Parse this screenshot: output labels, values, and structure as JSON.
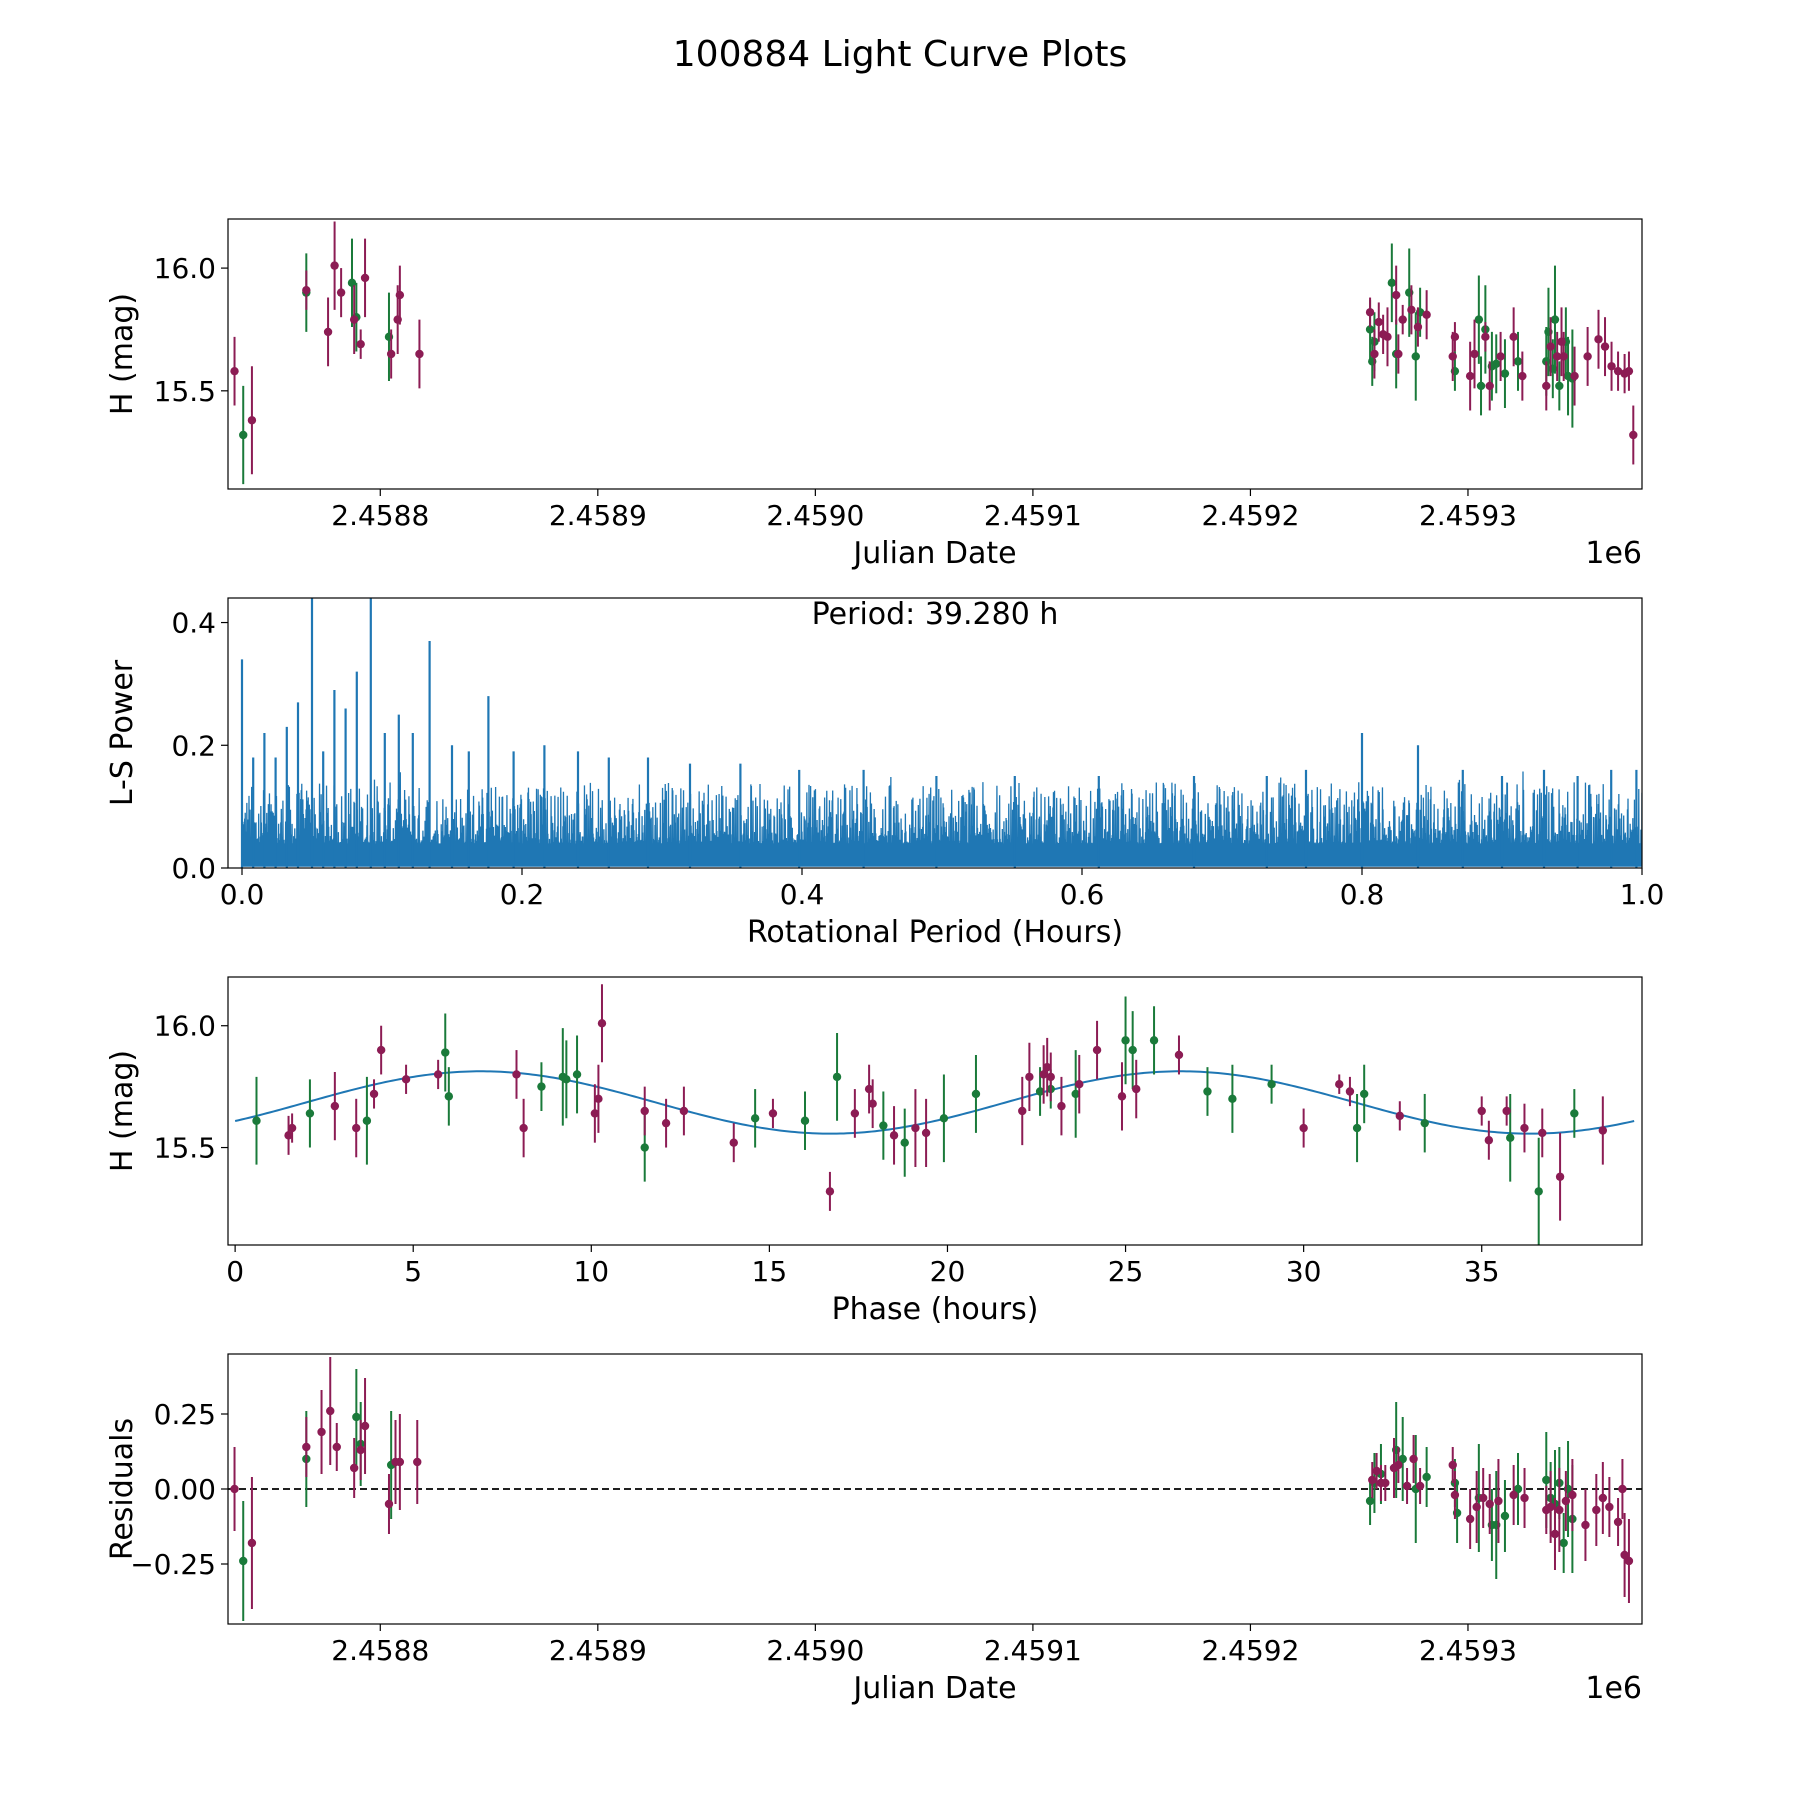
{
  "figure_title": "100884 Light Curve Plots",
  "colors": {
    "g": "#1a7a3a",
    "o": "#8c1c54",
    "model": "#1f77b4",
    "periodogram": "#1f77b4"
  },
  "chart_data": [
    {
      "id": "lc",
      "type": "scatter",
      "xlabel": "Julian Date",
      "ylabel": "H (mag)",
      "x_offset_label": "1e6",
      "xlim": [
        2.45873,
        2.45938
      ],
      "ylim": [
        15.1,
        16.2
      ],
      "xticks": [
        2.4588,
        2.4589,
        2.459,
        2.4591,
        2.4592,
        2.4593
      ],
      "xticklabels": [
        "2.4588",
        "2.4589",
        "2.4590",
        "2.4591",
        "2.4592",
        "2.4593"
      ],
      "yticks": [
        15.5,
        16.0
      ],
      "yticklabels": [
        "15.5",
        "16.0"
      ],
      "series": [
        {
          "name": "g",
          "x": [
            2.458737,
            2.458766,
            2.458787,
            2.458789,
            2.458804,
            2.459255,
            2.459256,
            2.459257,
            2.459265,
            2.459267,
            2.459273,
            2.459276,
            2.459278,
            2.459294,
            2.459305,
            2.459306,
            2.459308,
            2.459311,
            2.459313,
            2.459317,
            2.459323,
            2.459336,
            2.459337,
            2.459339,
            2.45934,
            2.459342,
            2.459345,
            2.459346,
            2.459348
          ],
          "y": [
            15.32,
            15.9,
            15.94,
            15.8,
            15.72,
            15.75,
            15.62,
            15.7,
            15.94,
            15.65,
            15.9,
            15.64,
            15.82,
            15.58,
            15.79,
            15.52,
            15.75,
            15.6,
            15.61,
            15.57,
            15.62,
            15.62,
            15.74,
            15.59,
            15.79,
            15.52,
            15.7,
            15.56,
            15.55
          ],
          "err": [
            0.2,
            0.16,
            0.18,
            0.14,
            0.18,
            0.12,
            0.1,
            0.12,
            0.16,
            0.14,
            0.18,
            0.18,
            0.1,
            0.08,
            0.18,
            0.12,
            0.18,
            0.14,
            0.12,
            0.14,
            0.12,
            0.14,
            0.18,
            0.12,
            0.22,
            0.1,
            0.14,
            0.16,
            0.2
          ]
        },
        {
          "name": "o",
          "x": [
            2.458733,
            2.458741,
            2.458766,
            2.458776,
            2.458779,
            2.458782,
            2.458788,
            2.458791,
            2.458793,
            2.458805,
            2.458808,
            2.458809,
            2.458818,
            2.459255,
            2.459257,
            2.459259,
            2.459261,
            2.459263,
            2.459267,
            2.459268,
            2.45927,
            2.459274,
            2.459277,
            2.459281,
            2.459293,
            2.459294,
            2.459301,
            2.459303,
            2.459308,
            2.45931,
            2.459315,
            2.459321,
            2.459325,
            2.459336,
            2.459338,
            2.459341,
            2.459343,
            2.459344,
            2.459349,
            2.459355,
            2.45936,
            2.459363,
            2.459366,
            2.459369,
            2.459372,
            2.459374,
            2.459376
          ],
          "y": [
            15.58,
            15.38,
            15.91,
            15.74,
            16.01,
            15.9,
            15.79,
            15.69,
            15.96,
            15.65,
            15.79,
            15.89,
            15.65,
            15.82,
            15.65,
            15.78,
            15.73,
            15.72,
            15.89,
            15.65,
            15.79,
            15.83,
            15.76,
            15.81,
            15.64,
            15.72,
            15.56,
            15.65,
            15.72,
            15.52,
            15.64,
            15.72,
            15.56,
            15.52,
            15.68,
            15.64,
            15.7,
            15.64,
            15.56,
            15.64,
            15.71,
            15.68,
            15.6,
            15.58,
            15.57,
            15.58,
            15.32
          ],
          "err": [
            0.14,
            0.22,
            0.08,
            0.14,
            0.18,
            0.1,
            0.14,
            0.06,
            0.16,
            0.1,
            0.14,
            0.12,
            0.14,
            0.06,
            0.1,
            0.08,
            0.08,
            0.12,
            0.12,
            0.08,
            0.06,
            0.1,
            0.08,
            0.1,
            0.1,
            0.06,
            0.14,
            0.14,
            0.06,
            0.1,
            0.1,
            0.12,
            0.1,
            0.1,
            0.12,
            0.1,
            0.14,
            0.1,
            0.12,
            0.12,
            0.12,
            0.12,
            0.1,
            0.08,
            0.08,
            0.08,
            0.12
          ]
        }
      ]
    },
    {
      "id": "ls",
      "type": "line",
      "xlabel": "Rotational Period (Hours)",
      "ylabel": "L-S Power",
      "annotation": "Period: 39.280 h",
      "xlim": [
        -0.01,
        1.0
      ],
      "ylim": [
        0.0,
        0.44
      ],
      "xticks": [
        0.0,
        0.2,
        0.4,
        0.6,
        0.8,
        1.0
      ],
      "xticklabels": [
        "0.0",
        "0.2",
        "0.4",
        "0.6",
        "0.8",
        "1.0"
      ],
      "yticks": [
        0.0,
        0.2,
        0.4
      ],
      "yticklabels": [
        "0.0",
        "0.2",
        "0.4"
      ],
      "peaks": [
        [
          0.0,
          0.34
        ],
        [
          0.008,
          0.18
        ],
        [
          0.016,
          0.22
        ],
        [
          0.024,
          0.18
        ],
        [
          0.032,
          0.23
        ],
        [
          0.04,
          0.27
        ],
        [
          0.05,
          0.44
        ],
        [
          0.058,
          0.19
        ],
        [
          0.066,
          0.29
        ],
        [
          0.074,
          0.26
        ],
        [
          0.082,
          0.32
        ],
        [
          0.092,
          0.44
        ],
        [
          0.102,
          0.22
        ],
        [
          0.112,
          0.25
        ],
        [
          0.122,
          0.22
        ],
        [
          0.134,
          0.37
        ],
        [
          0.15,
          0.2
        ],
        [
          0.162,
          0.19
        ],
        [
          0.176,
          0.28
        ],
        [
          0.194,
          0.19
        ],
        [
          0.216,
          0.2
        ],
        [
          0.24,
          0.19
        ],
        [
          0.262,
          0.18
        ],
        [
          0.29,
          0.18
        ],
        [
          0.32,
          0.17
        ],
        [
          0.356,
          0.17
        ],
        [
          0.398,
          0.16
        ],
        [
          0.444,
          0.16
        ],
        [
          0.496,
          0.15
        ],
        [
          0.552,
          0.15
        ],
        [
          0.612,
          0.15
        ],
        [
          0.68,
          0.15
        ],
        [
          0.732,
          0.15
        ],
        [
          0.76,
          0.16
        ],
        [
          0.8,
          0.22
        ],
        [
          0.84,
          0.2
        ],
        [
          0.872,
          0.16
        ],
        [
          0.9,
          0.15
        ],
        [
          0.93,
          0.16
        ],
        [
          0.954,
          0.15
        ],
        [
          0.978,
          0.16
        ],
        [
          0.996,
          0.16
        ]
      ]
    },
    {
      "id": "phase",
      "type": "scatter",
      "xlabel": "Phase (hours)",
      "ylabel": "H (mag)",
      "xlim": [
        -0.2,
        39.5
      ],
      "ylim": [
        15.1,
        16.2
      ],
      "xticks": [
        0,
        5,
        10,
        15,
        20,
        25,
        30,
        35
      ],
      "xticklabels": [
        "0",
        "5",
        "10",
        "15",
        "20",
        "25",
        "30",
        "35"
      ],
      "yticks": [
        15.5,
        16.0
      ],
      "yticklabels": [
        "15.5",
        "16.0"
      ],
      "model": {
        "period": 39.28,
        "mean": 15.685,
        "amp": 0.128,
        "peak_phase": 6.9
      },
      "series": [
        {
          "name": "g",
          "x": [
            0.6,
            2.1,
            3.7,
            5.9,
            6.0,
            8.6,
            9.2,
            9.3,
            9.6,
            11.5,
            14.6,
            16.0,
            16.9,
            18.2,
            18.8,
            19.9,
            20.8,
            22.6,
            22.9,
            23.6,
            25.0,
            25.2,
            25.8,
            27.3,
            28.0,
            29.1,
            31.5,
            31.7,
            33.4,
            35.8,
            36.6,
            37.6
          ],
          "y": [
            15.61,
            15.64,
            15.61,
            15.89,
            15.71,
            15.75,
            15.79,
            15.78,
            15.8,
            15.5,
            15.62,
            15.61,
            15.79,
            15.59,
            15.52,
            15.62,
            15.72,
            15.73,
            15.74,
            15.72,
            15.94,
            15.9,
            15.94,
            15.73,
            15.7,
            15.76,
            15.58,
            15.72,
            15.6,
            15.54,
            15.32,
            15.64
          ],
          "err": [
            0.18,
            0.14,
            0.18,
            0.16,
            0.12,
            0.1,
            0.2,
            0.16,
            0.16,
            0.14,
            0.12,
            0.12,
            0.18,
            0.14,
            0.14,
            0.18,
            0.16,
            0.1,
            0.08,
            0.18,
            0.18,
            0.16,
            0.14,
            0.1,
            0.14,
            0.08,
            0.14,
            0.12,
            0.12,
            0.18,
            0.22,
            0.1
          ]
        },
        {
          "name": "o",
          "x": [
            1.5,
            1.6,
            2.8,
            3.4,
            3.9,
            4.1,
            4.8,
            5.7,
            7.9,
            8.1,
            10.1,
            10.2,
            10.3,
            11.5,
            12.1,
            12.6,
            14.0,
            15.1,
            16.7,
            17.4,
            17.8,
            17.9,
            18.5,
            19.1,
            19.4,
            22.1,
            22.3,
            22.7,
            22.8,
            22.9,
            23.2,
            23.7,
            24.2,
            24.9,
            25.3,
            26.5,
            30.0,
            31.0,
            31.3,
            32.7,
            35.0,
            35.2,
            35.7,
            36.2,
            36.7,
            37.2,
            38.4
          ],
          "y": [
            15.55,
            15.58,
            15.67,
            15.58,
            15.72,
            15.9,
            15.78,
            15.8,
            15.8,
            15.58,
            15.64,
            15.7,
            16.01,
            15.65,
            15.6,
            15.65,
            15.52,
            15.64,
            15.32,
            15.64,
            15.74,
            15.68,
            15.55,
            15.58,
            15.56,
            15.65,
            15.79,
            15.8,
            15.83,
            15.79,
            15.67,
            15.76,
            15.9,
            15.71,
            15.74,
            15.88,
            15.58,
            15.76,
            15.73,
            15.63,
            15.65,
            15.53,
            15.65,
            15.58,
            15.56,
            15.38,
            15.57
          ],
          "err": [
            0.08,
            0.06,
            0.14,
            0.12,
            0.06,
            0.1,
            0.06,
            0.06,
            0.1,
            0.12,
            0.12,
            0.14,
            0.16,
            0.1,
            0.1,
            0.1,
            0.08,
            0.06,
            0.08,
            0.1,
            0.1,
            0.1,
            0.12,
            0.16,
            0.14,
            0.14,
            0.14,
            0.12,
            0.12,
            0.1,
            0.12,
            0.12,
            0.12,
            0.14,
            0.12,
            0.08,
            0.08,
            0.04,
            0.06,
            0.06,
            0.06,
            0.08,
            0.06,
            0.1,
            0.1,
            0.18,
            0.14
          ]
        }
      ]
    },
    {
      "id": "resid",
      "type": "scatter",
      "xlabel": "Julian Date",
      "ylabel": "Residuals",
      "x_offset_label": "1e6",
      "xlim": [
        2.45873,
        2.45938
      ],
      "ylim": [
        -0.45,
        0.45
      ],
      "xticks": [
        2.4588,
        2.4589,
        2.459,
        2.4591,
        2.4592,
        2.4593
      ],
      "xticklabels": [
        "2.4588",
        "2.4589",
        "2.4590",
        "2.4591",
        "2.4592",
        "2.4593"
      ],
      "yticks": [
        -0.25,
        0.0,
        0.25
      ],
      "yticklabels": [
        "−0.25",
        "0.00",
        "0.25"
      ],
      "series": [
        {
          "name": "g",
          "x": [
            2.458737,
            2.458766,
            2.458789,
            2.458791,
            2.458805,
            2.459255,
            2.459257,
            2.45926,
            2.459267,
            2.45927,
            2.459276,
            2.459281,
            2.459294,
            2.459295,
            2.459305,
            2.459311,
            2.459313,
            2.459317,
            2.459323,
            2.459336,
            2.459338,
            2.45934,
            2.459342,
            2.459344,
            2.459346,
            2.459348
          ],
          "y": [
            -0.24,
            0.1,
            0.24,
            0.15,
            0.08,
            -0.04,
            0.02,
            0.05,
            0.13,
            0.1,
            0.0,
            0.04,
            0.02,
            -0.08,
            -0.03,
            -0.12,
            -0.12,
            -0.09,
            0.0,
            0.03,
            -0.03,
            -0.05,
            0.02,
            -0.18,
            0.0,
            -0.1
          ],
          "err": [
            0.2,
            0.16,
            0.16,
            0.14,
            0.18,
            0.08,
            0.1,
            0.1,
            0.16,
            0.14,
            0.18,
            0.1,
            0.08,
            0.1,
            0.18,
            0.12,
            0.18,
            0.12,
            0.12,
            0.16,
            0.12,
            0.18,
            0.12,
            0.1,
            0.16,
            0.18
          ]
        },
        {
          "name": "o",
          "x": [
            2.458733,
            2.458741,
            2.458766,
            2.458773,
            2.458777,
            2.45878,
            2.458788,
            2.458791,
            2.458793,
            2.458804,
            2.458807,
            2.458809,
            2.458817,
            2.459256,
            2.459258,
            2.45926,
            2.459262,
            2.459266,
            2.459268,
            2.459272,
            2.459275,
            2.459278,
            2.459293,
            2.459294,
            2.459301,
            2.459304,
            2.459307,
            2.45931,
            2.459314,
            2.459321,
            2.459326,
            2.459336,
            2.459338,
            2.45934,
            2.459342,
            2.459345,
            2.459348,
            2.459354,
            2.459359,
            2.459362,
            2.459365,
            2.459369,
            2.459371,
            2.459372,
            2.459374
          ],
          "y": [
            0.0,
            -0.18,
            0.14,
            0.19,
            0.26,
            0.14,
            0.07,
            0.13,
            0.21,
            -0.05,
            0.09,
            0.09,
            0.09,
            0.03,
            0.06,
            0.02,
            0.02,
            0.07,
            0.08,
            0.01,
            0.1,
            0.01,
            0.08,
            -0.02,
            -0.1,
            -0.06,
            -0.03,
            -0.05,
            -0.04,
            -0.02,
            -0.03,
            -0.07,
            -0.06,
            -0.15,
            -0.07,
            -0.04,
            -0.02,
            -0.12,
            -0.07,
            -0.03,
            -0.06,
            -0.11,
            0.0,
            -0.22,
            -0.24
          ],
          "err": [
            0.14,
            0.22,
            0.1,
            0.14,
            0.18,
            0.08,
            0.1,
            0.1,
            0.16,
            0.1,
            0.14,
            0.16,
            0.14,
            0.06,
            0.06,
            0.06,
            0.06,
            0.1,
            0.06,
            0.06,
            0.08,
            0.06,
            0.06,
            0.08,
            0.1,
            0.12,
            0.1,
            0.1,
            0.14,
            0.1,
            0.1,
            0.08,
            0.12,
            0.12,
            0.14,
            0.1,
            0.12,
            0.12,
            0.12,
            0.12,
            0.1,
            0.08,
            0.1,
            0.14,
            0.14
          ]
        }
      ]
    }
  ]
}
